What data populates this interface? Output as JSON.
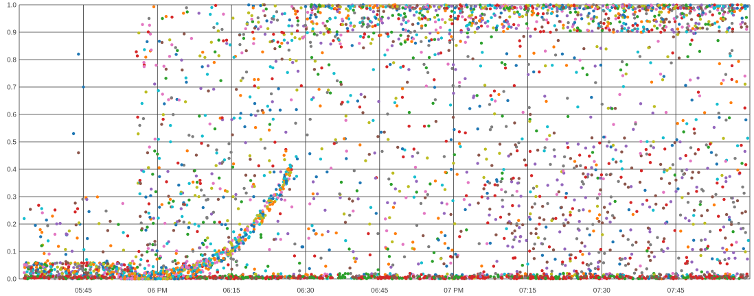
{
  "chart_data": {
    "type": "scatter",
    "title": "",
    "xlabel": "",
    "ylabel": "",
    "x_time_range": [
      "05:32",
      "08:00"
    ],
    "ylim": [
      0,
      1
    ],
    "grid": true,
    "legend": "none",
    "x_ticks": [
      {
        "time": "05:45",
        "label": "05:45"
      },
      {
        "time": "06:00",
        "label": "06 PM"
      },
      {
        "time": "06:15",
        "label": "06:15"
      },
      {
        "time": "06:30",
        "label": "06:30"
      },
      {
        "time": "06:45",
        "label": "06:45"
      },
      {
        "time": "07:00",
        "label": "07 PM"
      },
      {
        "time": "07:15",
        "label": "07:15"
      },
      {
        "time": "07:30",
        "label": "07:30"
      },
      {
        "time": "07:45",
        "label": "07:45"
      }
    ],
    "y_ticks": [
      "0.0",
      "0.1",
      "0.2",
      "0.3",
      "0.4",
      "0.5",
      "0.6",
      "0.7",
      "0.8",
      "0.9",
      "1.0"
    ],
    "series_colors": [
      "#1f77b4",
      "#ff7f0e",
      "#2ca02c",
      "#d62728",
      "#9467bd",
      "#8c564b",
      "#e377c2",
      "#7f7f7f",
      "#bcbd22",
      "#17becf"
    ],
    "sample_points": [
      {
        "time": "05:33",
        "y": 0.22,
        "color": "#17becf"
      },
      {
        "time": "05:44",
        "y": 0.82,
        "color": "#1f77b4"
      },
      {
        "time": "05:45",
        "y": 0.7,
        "color": "#1f77b4"
      },
      {
        "time": "05:43",
        "y": 0.53,
        "color": "#1f77b4"
      },
      {
        "time": "05:44",
        "y": 0.46,
        "color": "#8c564b"
      },
      {
        "time": "05:56",
        "y": 0.59,
        "color": "#d62728"
      },
      {
        "time": "05:58",
        "y": 0.46,
        "color": "#8c564b"
      },
      {
        "time": "06:01",
        "y": 0.95,
        "color": "#2ca02c"
      },
      {
        "time": "06:11",
        "y": 0.99,
        "color": "#17becf"
      },
      {
        "time": "07:59",
        "y": 0.74,
        "color": "#e377c2"
      }
    ]
  }
}
